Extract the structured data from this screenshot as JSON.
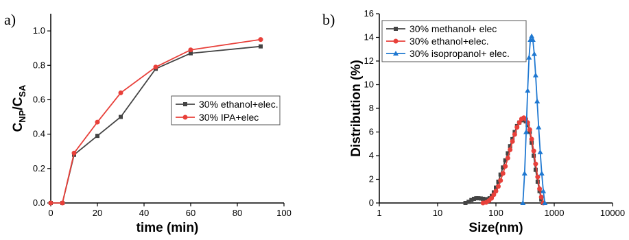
{
  "chart_data": [
    {
      "type": "line",
      "panel_label": "a)",
      "xlabel": "time (min)",
      "ylabel_main": "C",
      "ylabel_sub1": "NP",
      "ylabel_sep": "/C",
      "ylabel_sub2": "SA",
      "xlim": [
        0,
        100
      ],
      "ylim": [
        0,
        1.1
      ],
      "xticks": [
        0,
        20,
        40,
        60,
        80,
        100
      ],
      "xtick_labels": [
        "0",
        "20",
        "40",
        "60",
        "80",
        "100"
      ],
      "yticks": [
        0,
        0.2,
        0.4,
        0.6,
        0.8,
        1.0
      ],
      "ytick_labels": [
        "0.0",
        "0.2",
        "0.4",
        "0.6",
        "0.8",
        "1.0"
      ],
      "legend_position": "center-right",
      "series": [
        {
          "name": "30% ethanol+elec.",
          "color": "#444444",
          "marker": "square",
          "x": [
            0,
            5,
            10,
            20,
            30,
            45,
            60,
            90
          ],
          "y": [
            0,
            0,
            0.28,
            0.39,
            0.5,
            0.78,
            0.87,
            0.91
          ]
        },
        {
          "name": "30% IPA+elec",
          "color": "#e8403a",
          "marker": "circle",
          "x": [
            0,
            5,
            10,
            20,
            30,
            45,
            60,
            90
          ],
          "y": [
            0,
            0,
            0.29,
            0.47,
            0.64,
            0.79,
            0.89,
            0.95
          ]
        }
      ]
    },
    {
      "type": "line",
      "panel_label": "b)",
      "xlabel": "Size(nm)",
      "ylabel": "Distribution (%)",
      "xscale": "log",
      "xlim": [
        1,
        10000
      ],
      "ylim": [
        0,
        16
      ],
      "xticks": [
        1,
        10,
        100,
        1000,
        10000
      ],
      "xtick_labels": [
        "1",
        "10",
        "100",
        "1000",
        "10000"
      ],
      "yticks": [
        0,
        2,
        4,
        6,
        8,
        10,
        12,
        14,
        16
      ],
      "ytick_labels": [
        "0",
        "2",
        "4",
        "6",
        "8",
        "10",
        "12",
        "14",
        "16"
      ],
      "legend_position": "top-left",
      "series": [
        {
          "name": "30% methanol+ elec",
          "color": "#444444",
          "marker": "square",
          "x": [
            30,
            34,
            38,
            42,
            46,
            50,
            55,
            60,
            66,
            72,
            78,
            85,
            92,
            100,
            110,
            120,
            132,
            145,
            160,
            175,
            192,
            210,
            230,
            252,
            275,
            300,
            325,
            350,
            380,
            410,
            445,
            480,
            520,
            560,
            600,
            640
          ],
          "y": [
            0,
            0.1,
            0.25,
            0.35,
            0.4,
            0.4,
            0.38,
            0.35,
            0.32,
            0.32,
            0.4,
            0.6,
            0.9,
            1.3,
            1.8,
            2.4,
            3.0,
            3.6,
            4.2,
            4.8,
            5.4,
            6.0,
            6.5,
            6.8,
            7.0,
            7.0,
            6.9,
            6.6,
            6.0,
            5.1,
            4.0,
            2.8,
            1.8,
            1.0,
            0.3,
            0
          ]
        },
        {
          "name": "30% ethanol+elec.",
          "color": "#e8403a",
          "marker": "circle",
          "x": [
            60,
            68,
            76,
            84,
            92,
            100,
            110,
            120,
            132,
            145,
            160,
            175,
            192,
            210,
            230,
            252,
            275,
            300,
            325,
            350,
            380,
            410,
            445,
            480,
            520,
            560,
            600,
            650
          ],
          "y": [
            0,
            0.05,
            0.2,
            0.4,
            0.7,
            1.0,
            1.4,
            1.9,
            2.5,
            3.1,
            3.8,
            4.5,
            5.2,
            5.8,
            6.4,
            6.8,
            7.1,
            7.2,
            7.1,
            6.8,
            6.2,
            5.4,
            4.4,
            3.3,
            2.2,
            1.2,
            0.5,
            0
          ]
        },
        {
          "name": "30% isopropanol+ elec.",
          "color": "#1f78d1",
          "marker": "triangle",
          "x": [
            290,
            310,
            330,
            350,
            370,
            390,
            410,
            430,
            455,
            480,
            510,
            540,
            575,
            610,
            650,
            690
          ],
          "y": [
            0,
            2.5,
            6.0,
            9.5,
            12.3,
            13.8,
            14.1,
            13.8,
            12.6,
            10.8,
            8.6,
            6.4,
            4.3,
            2.5,
            1.0,
            0
          ]
        }
      ]
    }
  ]
}
